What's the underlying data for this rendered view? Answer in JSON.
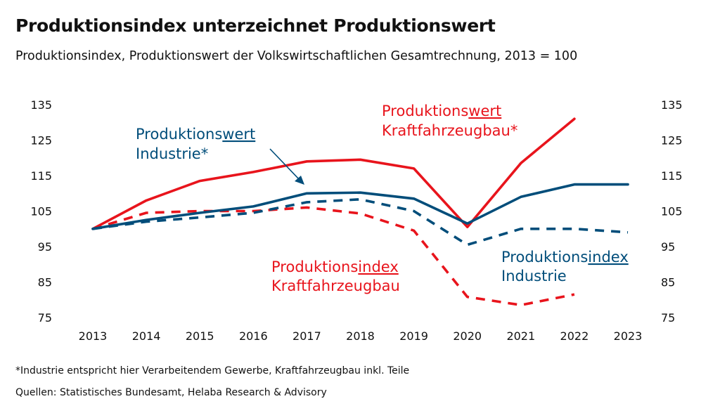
{
  "header": {
    "title": "Produktionsindex unterzeichnet Produktionswert",
    "subtitle": "Produktionsindex, Produktionswert der Volkswirtschaftlichen Gesamtrechnung, 2013 = 100"
  },
  "footer": {
    "footnote": "*Industrie entspricht hier Verarbeitendem Gewerbe, Kraftfahrzeugbau inkl. Teile",
    "sources": "Quellen: Statistisches Bundesamt, Helaba Research & Advisory"
  },
  "colors": {
    "red": "#e8141c",
    "blue": "#004d7a"
  },
  "chart_data": {
    "type": "line",
    "x": [
      2013,
      2014,
      2015,
      2016,
      2017,
      2018,
      2019,
      2020,
      2021,
      2022,
      2023
    ],
    "ylim": [
      75,
      135
    ],
    "yticks": [
      75,
      85,
      95,
      105,
      115,
      125,
      135
    ],
    "axes": "left-and-right",
    "grid": false,
    "series": [
      {
        "key": "pw_kfz",
        "color": "#e8141c",
        "dash": false,
        "values": [
          100,
          108,
          113.5,
          116,
          119,
          119.5,
          117,
          100.5,
          118.5,
          131,
          null
        ]
      },
      {
        "key": "pw_ind",
        "color": "#004d7a",
        "dash": false,
        "values": [
          100,
          102.5,
          104.5,
          106.3,
          110,
          110.2,
          108.5,
          101.5,
          109,
          112.5,
          112.5
        ]
      },
      {
        "key": "pi_kfz",
        "color": "#e8141c",
        "dash": true,
        "values": [
          100,
          104.5,
          105,
          105,
          106,
          104.3,
          99.5,
          80.8,
          78.5,
          81.5,
          null
        ]
      },
      {
        "key": "pi_ind",
        "color": "#004d7a",
        "dash": true,
        "values": [
          100,
          102,
          103.2,
          104.5,
          107.5,
          108.3,
          105,
          95.5,
          100,
          100,
          99
        ]
      }
    ],
    "annotations": [
      {
        "id": "pw_kfz",
        "lines": [
          {
            "pre": "Produktions",
            "ul": "wert",
            "post": ""
          },
          {
            "pre": "Kraftfahrzeugbau*",
            "ul": "",
            "post": ""
          }
        ],
        "color": "#e8141c"
      },
      {
        "id": "pw_ind",
        "lines": [
          {
            "pre": "Produktions",
            "ul": "wert",
            "post": ""
          },
          {
            "pre": "Industrie*",
            "ul": "",
            "post": ""
          }
        ],
        "color": "#004d7a"
      },
      {
        "id": "pi_kfz",
        "lines": [
          {
            "pre": "Produktions",
            "ul": "index",
            "post": ""
          },
          {
            "pre": "Kraftfahrzeugbau",
            "ul": "",
            "post": ""
          }
        ],
        "color": "#e8141c"
      },
      {
        "id": "pi_ind",
        "lines": [
          {
            "pre": "Produktions",
            "ul": "index",
            "post": ""
          },
          {
            "pre": "Industrie",
            "ul": "",
            "post": ""
          }
        ],
        "color": "#004d7a"
      }
    ]
  }
}
